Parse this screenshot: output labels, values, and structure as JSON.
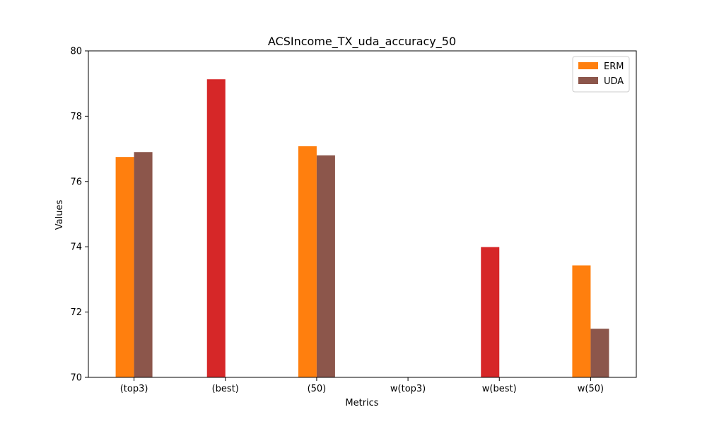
{
  "chart_data": {
    "type": "bar",
    "title": "ACSIncome_TX_uda_accuracy_50",
    "xlabel": "Metrics",
    "ylabel": "Values",
    "categories": [
      "(top3)",
      "(best)",
      "(50)",
      "w(top3)",
      "w(best)",
      "w(50)"
    ],
    "ylim": [
      70,
      80
    ],
    "yticks": [
      70,
      72,
      74,
      76,
      78,
      80
    ],
    "grid": false,
    "legend_position": "top-right",
    "series": [
      {
        "name": "ERM",
        "color": "#ff7f0e",
        "values": [
          76.75,
          null,
          77.08,
          null,
          null,
          73.43
        ]
      },
      {
        "name": "UDA",
        "color": "#8c564b",
        "values": [
          76.9,
          null,
          76.8,
          null,
          null,
          71.49
        ]
      }
    ],
    "single_bars": {
      "color": "#d62728",
      "values": [
        null,
        79.13,
        null,
        null,
        73.99,
        null
      ]
    }
  }
}
